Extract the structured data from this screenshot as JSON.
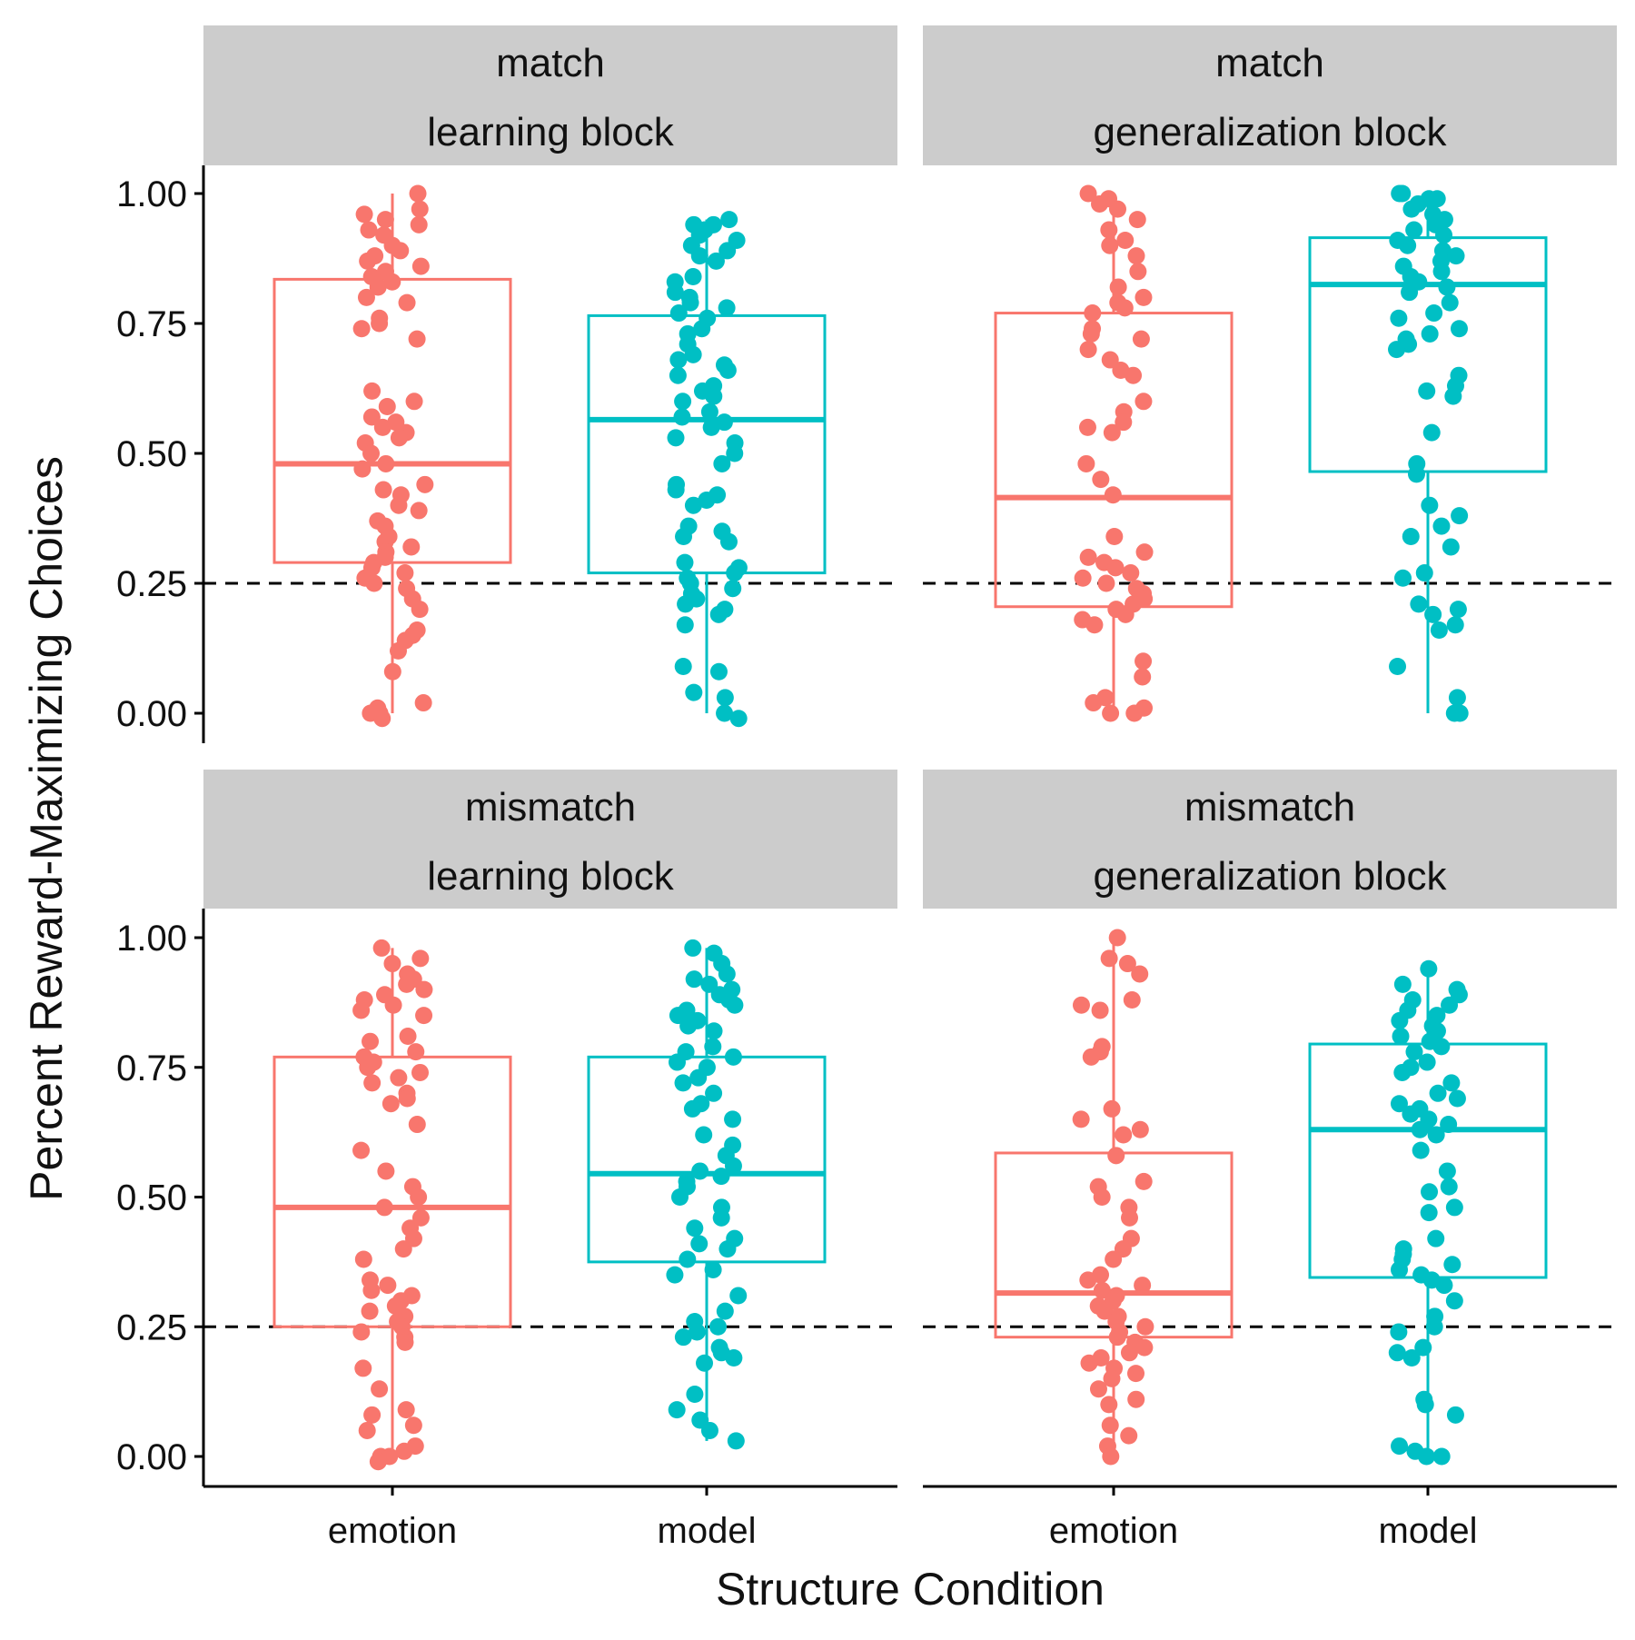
{
  "chart_data": {
    "type": "box",
    "xlabel": "Structure Condition",
    "ylabel": "Percent Reward-Maximizing Choices",
    "categories": [
      "emotion",
      "model"
    ],
    "ylim": [
      -0.05,
      1.05
    ],
    "yticks": [
      "0.00",
      "0.25",
      "0.50",
      "0.75",
      "1.00"
    ],
    "reference_line": {
      "y": 0.25,
      "style": "dashed"
    },
    "colors": {
      "emotion": "#F8766D",
      "model": "#00BFC4",
      "strip_bg": "#CCCCCC"
    },
    "grid": false,
    "legend": "none",
    "panels": [
      {
        "strip": [
          "match",
          "learning block"
        ],
        "boxes": [
          {
            "category": "emotion",
            "lower": 0.0,
            "q1": 0.29,
            "median": 0.48,
            "q3": 0.835,
            "upper": 1.0,
            "points": [
              1.0,
              0.97,
              0.96,
              0.95,
              0.94,
              0.93,
              0.92,
              0.9,
              0.89,
              0.88,
              0.87,
              0.86,
              0.85,
              0.84,
              0.83,
              0.82,
              0.8,
              0.79,
              0.76,
              0.75,
              0.74,
              0.72,
              0.62,
              0.6,
              0.59,
              0.57,
              0.56,
              0.55,
              0.54,
              0.53,
              0.52,
              0.5,
              0.48,
              0.47,
              0.44,
              0.43,
              0.42,
              0.4,
              0.39,
              0.37,
              0.36,
              0.34,
              0.33,
              0.32,
              0.31,
              0.3,
              0.29,
              0.28,
              0.27,
              0.26,
              0.25,
              0.24,
              0.22,
              0.2,
              0.16,
              0.15,
              0.14,
              0.12,
              0.08,
              0.02,
              0.01,
              0.0,
              0.0,
              -0.01
            ]
          },
          {
            "category": "model",
            "lower": 0.0,
            "q1": 0.27,
            "median": 0.565,
            "q3": 0.765,
            "upper": 0.95,
            "points": [
              0.95,
              0.94,
              0.94,
              0.93,
              0.92,
              0.91,
              0.9,
              0.89,
              0.88,
              0.87,
              0.84,
              0.83,
              0.81,
              0.8,
              0.79,
              0.78,
              0.77,
              0.76,
              0.74,
              0.73,
              0.71,
              0.69,
              0.68,
              0.67,
              0.66,
              0.65,
              0.63,
              0.62,
              0.61,
              0.6,
              0.58,
              0.57,
              0.56,
              0.55,
              0.53,
              0.52,
              0.5,
              0.48,
              0.44,
              0.43,
              0.42,
              0.41,
              0.4,
              0.36,
              0.35,
              0.34,
              0.33,
              0.29,
              0.28,
              0.27,
              0.26,
              0.25,
              0.24,
              0.23,
              0.22,
              0.21,
              0.2,
              0.19,
              0.17,
              0.09,
              0.08,
              0.04,
              0.03,
              0.0,
              -0.01
            ]
          }
        ]
      },
      {
        "strip": [
          "match",
          "generalization block"
        ],
        "boxes": [
          {
            "category": "emotion",
            "lower": 0.0,
            "q1": 0.205,
            "median": 0.415,
            "q3": 0.77,
            "upper": 1.0,
            "points": [
              1.0,
              0.99,
              0.98,
              0.97,
              0.95,
              0.93,
              0.91,
              0.9,
              0.88,
              0.85,
              0.82,
              0.8,
              0.79,
              0.78,
              0.77,
              0.74,
              0.73,
              0.72,
              0.7,
              0.68,
              0.66,
              0.65,
              0.6,
              0.58,
              0.56,
              0.55,
              0.54,
              0.48,
              0.45,
              0.42,
              0.34,
              0.31,
              0.3,
              0.29,
              0.28,
              0.27,
              0.26,
              0.25,
              0.24,
              0.23,
              0.22,
              0.21,
              0.2,
              0.19,
              0.18,
              0.17,
              0.1,
              0.07,
              0.03,
              0.02,
              0.01,
              0.0,
              0.0
            ]
          },
          {
            "category": "model",
            "lower": 0.0,
            "q1": 0.465,
            "median": 0.825,
            "q3": 0.915,
            "upper": 1.0,
            "points": [
              1.0,
              1.0,
              0.99,
              0.99,
              0.98,
              0.97,
              0.96,
              0.95,
              0.94,
              0.93,
              0.92,
              0.91,
              0.9,
              0.89,
              0.88,
              0.87,
              0.86,
              0.85,
              0.84,
              0.83,
              0.82,
              0.81,
              0.79,
              0.77,
              0.76,
              0.74,
              0.73,
              0.72,
              0.71,
              0.7,
              0.65,
              0.63,
              0.62,
              0.61,
              0.54,
              0.48,
              0.46,
              0.4,
              0.38,
              0.36,
              0.34,
              0.32,
              0.27,
              0.26,
              0.21,
              0.2,
              0.19,
              0.17,
              0.16,
              0.09,
              0.03,
              0.0,
              0.0
            ]
          }
        ]
      },
      {
        "strip": [
          "mismatch",
          "learning block"
        ],
        "boxes": [
          {
            "category": "emotion",
            "lower": 0.0,
            "q1": 0.25,
            "median": 0.48,
            "q3": 0.77,
            "upper": 0.98,
            "points": [
              0.98,
              0.96,
              0.95,
              0.93,
              0.92,
              0.91,
              0.9,
              0.89,
              0.88,
              0.87,
              0.86,
              0.85,
              0.81,
              0.8,
              0.78,
              0.77,
              0.76,
              0.75,
              0.74,
              0.73,
              0.72,
              0.7,
              0.69,
              0.68,
              0.64,
              0.59,
              0.55,
              0.52,
              0.5,
              0.48,
              0.46,
              0.44,
              0.42,
              0.4,
              0.38,
              0.34,
              0.33,
              0.32,
              0.31,
              0.3,
              0.29,
              0.28,
              0.27,
              0.26,
              0.25,
              0.24,
              0.23,
              0.22,
              0.17,
              0.13,
              0.09,
              0.08,
              0.06,
              0.05,
              0.02,
              0.01,
              0.0,
              0.0,
              -0.01
            ]
          },
          {
            "category": "model",
            "lower": 0.03,
            "q1": 0.375,
            "median": 0.545,
            "q3": 0.77,
            "upper": 0.98,
            "points": [
              0.98,
              0.97,
              0.95,
              0.93,
              0.92,
              0.91,
              0.9,
              0.89,
              0.88,
              0.87,
              0.86,
              0.85,
              0.84,
              0.83,
              0.82,
              0.79,
              0.78,
              0.77,
              0.76,
              0.75,
              0.73,
              0.72,
              0.7,
              0.68,
              0.67,
              0.65,
              0.62,
              0.6,
              0.58,
              0.56,
              0.55,
              0.54,
              0.53,
              0.52,
              0.5,
              0.48,
              0.46,
              0.44,
              0.42,
              0.41,
              0.4,
              0.38,
              0.36,
              0.35,
              0.31,
              0.28,
              0.26,
              0.25,
              0.24,
              0.23,
              0.21,
              0.2,
              0.19,
              0.18,
              0.12,
              0.09,
              0.07,
              0.05,
              0.03
            ]
          }
        ]
      },
      {
        "strip": [
          "mismatch",
          "generalization block"
        ],
        "boxes": [
          {
            "category": "emotion",
            "lower": 0.0,
            "q1": 0.23,
            "median": 0.315,
            "q3": 0.585,
            "upper": 1.0,
            "points": [
              1.0,
              0.96,
              0.95,
              0.93,
              0.88,
              0.87,
              0.86,
              0.79,
              0.78,
              0.77,
              0.67,
              0.65,
              0.63,
              0.62,
              0.58,
              0.53,
              0.52,
              0.5,
              0.48,
              0.46,
              0.42,
              0.4,
              0.38,
              0.35,
              0.34,
              0.33,
              0.32,
              0.31,
              0.3,
              0.29,
              0.28,
              0.27,
              0.26,
              0.25,
              0.24,
              0.23,
              0.22,
              0.21,
              0.2,
              0.19,
              0.18,
              0.17,
              0.16,
              0.15,
              0.13,
              0.11,
              0.1,
              0.06,
              0.04,
              0.02,
              0.0
            ]
          },
          {
            "category": "model",
            "lower": 0.0,
            "q1": 0.345,
            "median": 0.63,
            "q3": 0.795,
            "upper": 0.935,
            "points": [
              0.94,
              0.91,
              0.9,
              0.89,
              0.88,
              0.87,
              0.86,
              0.85,
              0.84,
              0.83,
              0.82,
              0.81,
              0.8,
              0.79,
              0.78,
              0.76,
              0.75,
              0.74,
              0.72,
              0.7,
              0.69,
              0.68,
              0.67,
              0.66,
              0.65,
              0.64,
              0.63,
              0.62,
              0.59,
              0.55,
              0.52,
              0.51,
              0.48,
              0.47,
              0.42,
              0.4,
              0.39,
              0.38,
              0.37,
              0.36,
              0.35,
              0.34,
              0.33,
              0.3,
              0.27,
              0.25,
              0.24,
              0.21,
              0.2,
              0.19,
              0.11,
              0.1,
              0.08,
              0.02,
              0.01,
              0.0,
              0.0
            ]
          }
        ]
      }
    ]
  }
}
